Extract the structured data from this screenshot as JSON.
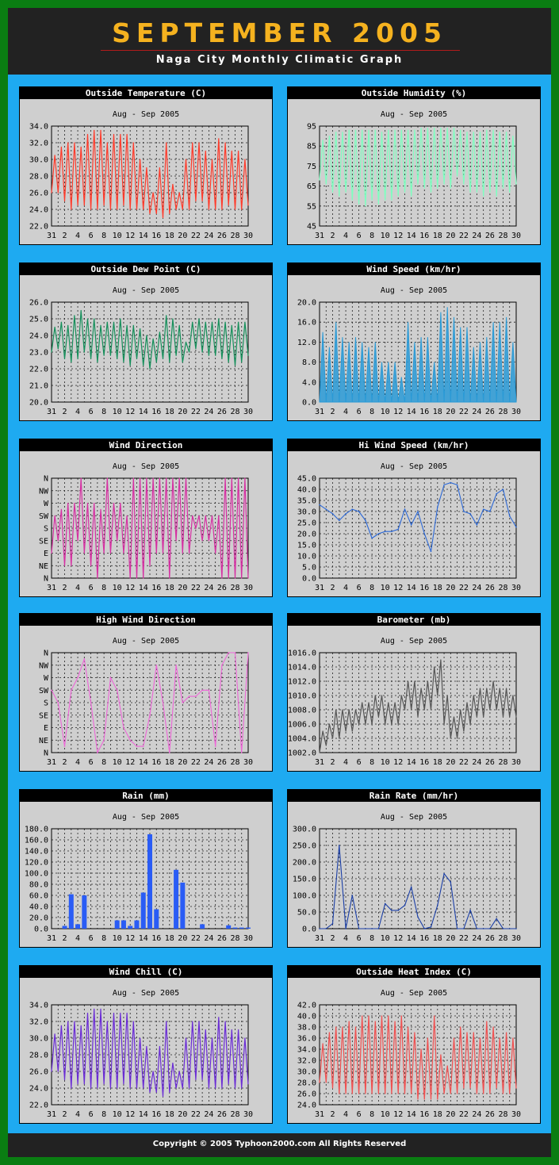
{
  "header": {
    "title": "SEPTEMBER 2005",
    "subtitle": "Naga City Monthly Climatic Graph"
  },
  "footer": {
    "text": "Copyright © 2005   Typhoon2000.com    All Rights Reserved"
  },
  "x_tick_labels": [
    "31",
    "2",
    "4",
    "6",
    "8",
    "10",
    "12",
    "14",
    "16",
    "18",
    "20",
    "22",
    "24",
    "26",
    "28",
    "30"
  ],
  "chart_data": [
    {
      "type": "line",
      "title": "Outside Temperature (C)",
      "subtitle": "Aug - Sep  2005",
      "color": "#ff3a2a",
      "ylim": [
        22,
        34
      ],
      "yticks": [
        "34.0",
        "32.0",
        "30.0",
        "28.0",
        "26.0",
        "24.0",
        "22.0"
      ],
      "x": [
        0,
        1,
        2,
        3,
        4,
        5,
        6,
        7,
        8,
        9,
        10,
        11,
        12,
        13,
        14,
        15,
        16,
        17,
        18,
        19,
        20,
        21,
        22,
        23,
        24,
        25,
        26,
        27,
        28,
        29,
        30
      ],
      "high": [
        30.5,
        31.5,
        32,
        32,
        31.5,
        33,
        33.5,
        33.5,
        32,
        33,
        33,
        33,
        32,
        30,
        29,
        26,
        29,
        32,
        27,
        26,
        30,
        32,
        32,
        31,
        30,
        32.5,
        32,
        31,
        31,
        30,
        32
      ],
      "low": [
        26,
        26,
        25,
        24,
        24.5,
        24.5,
        24,
        24,
        24.5,
        24,
        24,
        24.5,
        24,
        24,
        24,
        23.5,
        23.5,
        23,
        23.5,
        24,
        24,
        24,
        25,
        25,
        24,
        24,
        24,
        24.5,
        24,
        24,
        24.5
      ]
    },
    {
      "type": "line",
      "title": "Outside Humidity (%)",
      "subtitle": "Aug - Sep  2005",
      "color": "#7fffc0",
      "ylim": [
        45,
        95
      ],
      "yticks": [
        "95",
        "85",
        "75",
        "65",
        "55",
        "45"
      ],
      "x": [
        0,
        1,
        2,
        3,
        4,
        5,
        6,
        7,
        8,
        9,
        10,
        11,
        12,
        13,
        14,
        15,
        16,
        17,
        18,
        19,
        20,
        21,
        22,
        23,
        24,
        25,
        26,
        27,
        28,
        29,
        30
      ],
      "high": [
        88,
        90,
        92,
        92,
        93,
        93,
        93,
        93,
        93,
        92,
        93,
        93,
        93,
        93,
        93,
        94,
        94,
        94,
        94,
        94,
        94,
        93,
        92,
        92,
        92,
        93,
        93,
        92,
        92,
        90,
        90
      ],
      "low": [
        68,
        66,
        62,
        60,
        62,
        58,
        56,
        55,
        58,
        56,
        58,
        58,
        60,
        62,
        60,
        66,
        64,
        62,
        64,
        66,
        64,
        70,
        66,
        62,
        62,
        60,
        62,
        60,
        64,
        62,
        66
      ]
    },
    {
      "type": "line",
      "title": "Outside Dew Point (C)",
      "subtitle": "Aug - Sep  2005",
      "color": "#148f5a",
      "ylim": [
        20,
        26
      ],
      "yticks": [
        "26.0",
        "25.0",
        "24.0",
        "23.0",
        "22.0",
        "21.0",
        "20.0"
      ],
      "x": [
        0,
        1,
        2,
        3,
        4,
        5,
        6,
        7,
        8,
        9,
        10,
        11,
        12,
        13,
        14,
        15,
        16,
        17,
        18,
        19,
        20,
        21,
        22,
        23,
        24,
        25,
        26,
        27,
        28,
        29,
        30
      ],
      "high": [
        24.5,
        24.8,
        24.6,
        25.2,
        25.5,
        25,
        25,
        24.6,
        24.8,
        24.8,
        25,
        24.6,
        24.6,
        24.4,
        24,
        23.8,
        24.2,
        25.2,
        25,
        24.6,
        23.6,
        24.8,
        25,
        24.8,
        24.8,
        25,
        24.8,
        24.6,
        24.8,
        24.8,
        24.4
      ],
      "low": [
        23,
        23.2,
        22.6,
        22.4,
        22.6,
        23,
        22.6,
        22.4,
        22.8,
        22.8,
        22.6,
        22.4,
        22.2,
        22.6,
        22.2,
        22,
        22.4,
        22.6,
        22.4,
        22.8,
        22.4,
        23,
        23.2,
        23,
        22.8,
        22.8,
        22.6,
        22.4,
        22.2,
        22.4,
        22.8
      ]
    },
    {
      "type": "area",
      "title": "Wind Speed (km/hr)",
      "subtitle": "Aug - Sep  2005",
      "color": "#2a9ad6",
      "ylim": [
        0,
        20
      ],
      "yticks": [
        "20.0",
        "16.0",
        "12.0",
        "8.0",
        "4.0",
        "0.0"
      ],
      "x": [
        0,
        1,
        2,
        3,
        4,
        5,
        6,
        7,
        8,
        9,
        10,
        11,
        12,
        13,
        14,
        15,
        16,
        17,
        18,
        19,
        20,
        21,
        22,
        23,
        24,
        25,
        26,
        27,
        28,
        29,
        30
      ],
      "high": [
        14,
        11,
        16,
        13,
        12,
        13,
        12,
        11,
        12,
        8,
        8,
        8,
        5,
        16,
        12,
        13,
        13,
        8,
        18,
        19,
        17,
        15,
        15,
        11,
        12,
        13,
        16,
        16,
        17,
        12,
        10
      ],
      "low": [
        0,
        0,
        0,
        0,
        0,
        0,
        0,
        0,
        0,
        0,
        0,
        0,
        0,
        0,
        0,
        0,
        0,
        0,
        0,
        0,
        0,
        0,
        0,
        0,
        0,
        0,
        0,
        0,
        0,
        0,
        0
      ]
    },
    {
      "type": "line",
      "title": "Wind Direction",
      "subtitle": "Aug - Sep  2005",
      "color": "#d62fa2",
      "ylim": [
        0,
        8
      ],
      "yticks": [
        "N",
        "NW",
        "W",
        "SW",
        "S",
        "SE",
        "E",
        "NE",
        "N"
      ],
      "x": [
        0,
        1,
        2,
        3,
        4,
        5,
        6,
        7,
        8,
        9,
        10,
        11,
        12,
        13,
        14,
        15,
        16,
        17,
        18,
        19,
        20,
        21,
        22,
        23,
        24,
        25,
        26,
        27,
        28,
        29,
        30
      ],
      "high": [
        5,
        5.5,
        6,
        6,
        8,
        6,
        6,
        5.5,
        8,
        6,
        6,
        5,
        8,
        8,
        8,
        8,
        8,
        8,
        8,
        8,
        8,
        5,
        5,
        5,
        5,
        5,
        8,
        8,
        8,
        8,
        8
      ],
      "low": [
        2,
        3,
        1,
        1,
        3,
        2,
        1,
        0,
        2,
        2,
        3,
        2,
        0,
        0,
        0,
        1,
        2,
        2,
        0,
        3,
        2,
        2,
        4,
        3,
        3,
        2,
        0,
        0,
        0,
        0,
        0
      ]
    },
    {
      "type": "line",
      "title": "Hi Wind Speed (km/hr)",
      "subtitle": "Aug - Sep  2005",
      "color": "#2a67d6",
      "ylim": [
        0,
        45
      ],
      "yticks": [
        "45.0",
        "40.0",
        "35.0",
        "30.0",
        "25.0",
        "20.0",
        "15.0",
        "10.0",
        "5.0",
        "0.0"
      ],
      "x": [
        0,
        1,
        2,
        3,
        4,
        5,
        6,
        7,
        8,
        9,
        10,
        11,
        12,
        13,
        14,
        15,
        16,
        17,
        18,
        19,
        20,
        21,
        22,
        23,
        24,
        25,
        26,
        27,
        28,
        29,
        30
      ],
      "values": [
        33,
        31,
        29,
        26,
        29,
        31,
        30,
        26,
        18,
        20,
        21,
        21,
        22,
        31,
        24,
        30,
        20,
        12,
        32,
        42,
        43,
        42,
        30,
        29,
        24,
        31,
        30,
        38,
        40,
        28,
        23
      ]
    },
    {
      "type": "line",
      "title": "High Wind Direction",
      "subtitle": "Aug - Sep  2005",
      "color": "#ee66d8",
      "ylim": [
        0,
        8
      ],
      "yticks": [
        "N",
        "NW",
        "W",
        "SW",
        "S",
        "SE",
        "E",
        "NE",
        "N"
      ],
      "x": [
        0,
        1,
        2,
        3,
        4,
        5,
        6,
        7,
        8,
        9,
        10,
        11,
        12,
        13,
        14,
        15,
        16,
        17,
        18,
        19,
        20,
        21,
        22,
        23,
        24,
        25,
        26,
        27,
        28,
        29,
        30
      ],
      "values": [
        5,
        4,
        0.5,
        5,
        6,
        7.5,
        4,
        0,
        1,
        6,
        5,
        2,
        1,
        0.5,
        0.5,
        3,
        7,
        4,
        0,
        7,
        4,
        4.5,
        4.5,
        5,
        5,
        0.5,
        7,
        8,
        8,
        0,
        8
      ]
    },
    {
      "type": "line",
      "title": "Barometer (mb)",
      "subtitle": "Aug - Sep  2005",
      "color": "#555555",
      "ylim": [
        1002,
        1016
      ],
      "yticks": [
        "1016.0",
        "1014.0",
        "1012.0",
        "1010.0",
        "1008.0",
        "1006.0",
        "1004.0",
        "1002.0"
      ],
      "x": [
        0,
        1,
        2,
        3,
        4,
        5,
        6,
        7,
        8,
        9,
        10,
        11,
        12,
        13,
        14,
        15,
        16,
        17,
        18,
        19,
        20,
        21,
        22,
        23,
        24,
        25,
        26,
        27,
        28,
        29,
        30
      ],
      "high": [
        1005,
        1006,
        1008,
        1008,
        1008,
        1008,
        1009,
        1009,
        1010,
        1010,
        1009,
        1009,
        1010,
        1012,
        1012,
        1011,
        1012,
        1014,
        1015,
        1010,
        1007,
        1008,
        1009,
        1010,
        1011,
        1011,
        1012,
        1011,
        1011,
        1010,
        1010
      ],
      "low": [
        1002,
        1003,
        1004,
        1004,
        1005,
        1005,
        1006,
        1006,
        1006,
        1007,
        1006,
        1006,
        1006,
        1008,
        1008,
        1007,
        1008,
        1008,
        1010,
        1006,
        1004,
        1004,
        1005,
        1006,
        1007,
        1007,
        1008,
        1008,
        1007,
        1007,
        1007
      ]
    },
    {
      "type": "bar",
      "title": "Rain (mm)",
      "subtitle": "Aug - Sep  2005",
      "color": "#2a5cf5",
      "ylim": [
        0,
        180
      ],
      "yticks": [
        "180.0",
        "160.0",
        "140.0",
        "120.0",
        "100.0",
        "80.0",
        "60.0",
        "40.0",
        "20.0",
        "0.0"
      ],
      "x": [
        0,
        1,
        2,
        3,
        4,
        5,
        6,
        7,
        8,
        9,
        10,
        11,
        12,
        13,
        14,
        15,
        16,
        17,
        18,
        19,
        20,
        21,
        22,
        23,
        24,
        25,
        26,
        27,
        28,
        29,
        30
      ],
      "values": [
        0,
        0,
        5,
        62,
        8,
        60,
        0,
        0,
        0,
        0,
        15,
        15,
        5,
        15,
        65,
        170,
        35,
        0,
        0,
        106,
        83,
        0,
        0,
        8,
        0,
        0,
        0,
        6,
        2,
        2,
        2
      ]
    },
    {
      "type": "line",
      "title": "Rain Rate (mm/hr)",
      "subtitle": "Aug - Sep  2005",
      "color": "#1a3ea6",
      "ylim": [
        0,
        300
      ],
      "yticks": [
        "300.0",
        "250.0",
        "200.0",
        "150.0",
        "100.0",
        "50.0",
        "0.0"
      ],
      "x": [
        0,
        1,
        2,
        3,
        4,
        5,
        6,
        7,
        8,
        9,
        10,
        11,
        12,
        13,
        14,
        15,
        16,
        17,
        18,
        19,
        20,
        21,
        22,
        23,
        24,
        25,
        26,
        27,
        28,
        29,
        30
      ],
      "values": [
        0,
        0,
        15,
        250,
        0,
        100,
        0,
        0,
        0,
        0,
        75,
        55,
        55,
        70,
        125,
        35,
        0,
        5,
        70,
        165,
        140,
        0,
        0,
        55,
        0,
        0,
        0,
        30,
        0,
        0,
        0
      ]
    },
    {
      "type": "line",
      "title": "Wind Chill (C)",
      "subtitle": "Aug - Sep  2005",
      "color": "#6a2bd6",
      "ylim": [
        22,
        34
      ],
      "yticks": [
        "34.0",
        "32.0",
        "30.0",
        "28.0",
        "26.0",
        "24.0",
        "22.0"
      ],
      "x": [
        0,
        1,
        2,
        3,
        4,
        5,
        6,
        7,
        8,
        9,
        10,
        11,
        12,
        13,
        14,
        15,
        16,
        17,
        18,
        19,
        20,
        21,
        22,
        23,
        24,
        25,
        26,
        27,
        28,
        29,
        30
      ],
      "high": [
        30.5,
        31.5,
        32,
        32,
        31.5,
        33,
        33.5,
        33.5,
        32,
        33,
        33,
        33,
        32,
        30,
        29,
        26,
        29,
        32,
        27,
        26,
        30,
        32,
        32,
        31,
        30,
        32.5,
        32,
        31,
        31,
        30,
        32
      ],
      "low": [
        26,
        26,
        25,
        24,
        24.5,
        24.5,
        24,
        24,
        24.5,
        24,
        24,
        24.5,
        24,
        24,
        24,
        23.5,
        23.5,
        23,
        23.5,
        24,
        24,
        24,
        25,
        25,
        24,
        24,
        24,
        24.5,
        24,
        24,
        24.5
      ]
    },
    {
      "type": "line",
      "title": "Outside Heat Index (C)",
      "subtitle": "Aug - Sep  2005",
      "color": "#f05050",
      "ylim": [
        24,
        42
      ],
      "yticks": [
        "42.0",
        "40.0",
        "38.0",
        "36.0",
        "34.0",
        "32.0",
        "30.0",
        "28.0",
        "26.0",
        "24.0"
      ],
      "x": [
        0,
        1,
        2,
        3,
        4,
        5,
        6,
        7,
        8,
        9,
        10,
        11,
        12,
        13,
        14,
        15,
        16,
        17,
        18,
        19,
        20,
        21,
        22,
        23,
        24,
        25,
        26,
        27,
        28,
        29,
        30
      ],
      "high": [
        35,
        37,
        38,
        38,
        39,
        38,
        40,
        40,
        39,
        40,
        40,
        39,
        40,
        38,
        37,
        34,
        36,
        40,
        33,
        31,
        36,
        38,
        37,
        37,
        36,
        39,
        38,
        36,
        37,
        36,
        38
      ],
      "low": [
        28,
        28,
        27,
        26,
        26,
        26,
        26,
        26,
        26,
        26,
        26,
        26,
        26,
        26,
        26,
        25,
        25,
        25,
        25,
        26,
        26,
        26,
        27,
        27,
        26,
        26,
        26,
        27,
        26,
        26,
        27
      ]
    }
  ]
}
